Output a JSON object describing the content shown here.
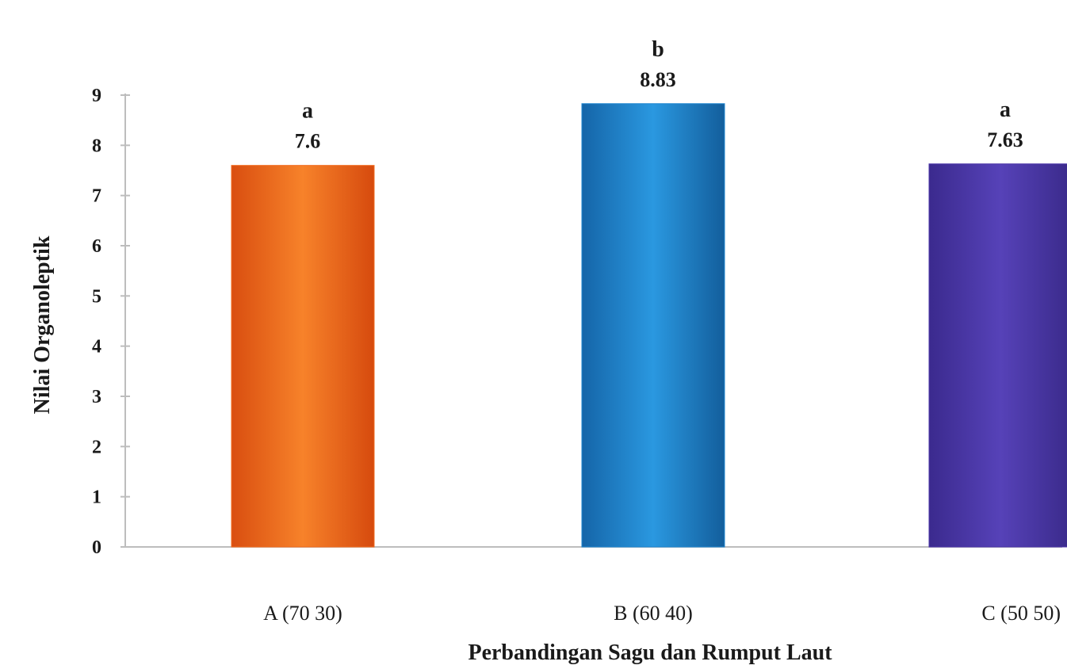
{
  "chart_data": {
    "type": "bar",
    "categories": [
      "A (70 30)",
      "B (60 40)",
      "C (50 50)"
    ],
    "values": [
      7.6,
      8.83,
      7.63
    ],
    "value_labels": [
      "7.6",
      "8.83",
      "7.63"
    ],
    "significance_letters": [
      "a",
      "b",
      "a"
    ],
    "bar_colors": [
      "#f26b1d",
      "#1e86d0",
      "#4b35a8"
    ],
    "title": "",
    "xlabel": "Perbandingan Sagu dan Rumput Laut",
    "ylabel": "Nilai Organoleptik",
    "ylim": [
      0,
      9
    ],
    "yticks": [
      "0",
      "1",
      "2",
      "3",
      "4",
      "5",
      "6",
      "7",
      "8",
      "9"
    ],
    "grid": false,
    "legend": "none"
  }
}
